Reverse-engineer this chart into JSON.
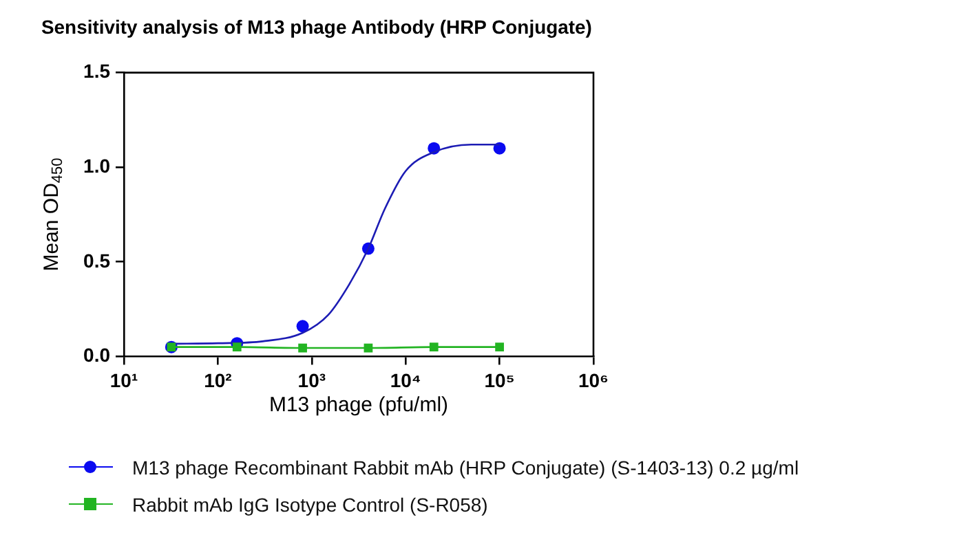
{
  "chart_data": {
    "type": "scatter",
    "title": "Sensitivity analysis of M13 phage Antibody (HRP Conjugate)",
    "xlabel": "M13 phage (pfu/ml)",
    "ylabel": "Mean OD$_{450}$",
    "x": [
      32,
      160,
      800,
      4000,
      20000,
      100000
    ],
    "series": [
      {
        "name": "M13 phage Recombinant Rabbit mAb (HRP Conjugate) (S-1403-13) 0.2 µg/ml",
        "type": "scatter",
        "color": "#0a0af0",
        "marker": "circle",
        "values": [
          0.05,
          0.07,
          0.16,
          0.57,
          1.1,
          1.1
        ]
      },
      {
        "type": "line",
        "color": "#1c1cb4",
        "marker": "none",
        "x": [
          32,
          100,
          300,
          800,
          1500,
          2500,
          4000,
          6000,
          10000,
          20000,
          50000,
          100000
        ],
        "values": [
          0.067,
          0.07,
          0.08,
          0.125,
          0.22,
          0.38,
          0.57,
          0.78,
          0.98,
          1.08,
          1.12,
          1.12
        ]
      },
      {
        "name": "Rabbit mAb IgG Isotype Control (S-R058)",
        "type": "line",
        "color": "#22b422",
        "marker": "square",
        "values": [
          0.05,
          0.05,
          0.045,
          0.045,
          0.05,
          0.05
        ]
      }
    ],
    "log": "x",
    "xlim": [
      10,
      1000000
    ],
    "xticks": [
      {
        "value": 10,
        "label": "10¹"
      },
      {
        "value": 100,
        "label": "10²"
      },
      {
        "value": 1000,
        "label": "10³"
      },
      {
        "value": 10000,
        "label": "10⁴"
      },
      {
        "value": 100000,
        "label": "10⁵"
      },
      {
        "value": 1000000,
        "label": "10⁶"
      }
    ],
    "ylim": [
      0,
      1.5
    ],
    "yticks": [
      {
        "value": 0,
        "label": "0.0"
      },
      {
        "value": 0.5,
        "label": "0.5"
      },
      {
        "value": 1,
        "label": "1.0"
      },
      {
        "value": 1.5,
        "label": "1.5"
      }
    ],
    "grid": false,
    "legend": "bottom"
  }
}
